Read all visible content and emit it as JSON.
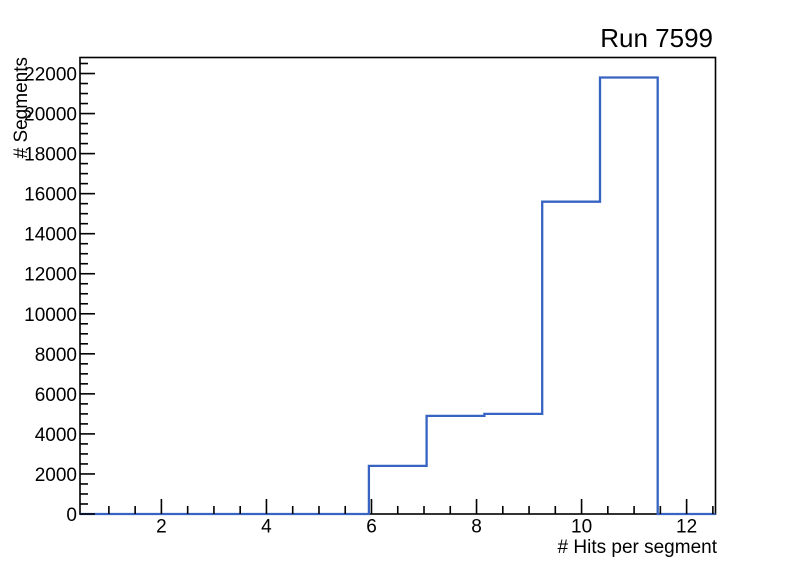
{
  "window": {
    "background": "#ffffff"
  },
  "chart_data": {
    "type": "step-histogram",
    "title": "Run 7599",
    "xlabel": "# Hits per segment",
    "ylabel": "# Segments",
    "xlim": [
      0.45,
      12.55
    ],
    "ylim": [
      0,
      22800
    ],
    "bin_edges": [
      0.45,
      1.55,
      2.65,
      3.75,
      4.85,
      5.95,
      7.05,
      8.15,
      9.25,
      10.35,
      11.45,
      12.55
    ],
    "bin_centers": [
      1.0,
      2.1,
      3.2,
      4.3,
      5.4,
      6.5,
      7.6,
      8.7,
      9.8,
      10.9,
      12.0
    ],
    "counts": [
      0,
      0,
      0,
      0,
      0,
      2400,
      4900,
      5000,
      15600,
      21800,
      0
    ],
    "x_major_ticks": [
      2,
      4,
      6,
      8,
      10,
      12
    ],
    "x_major_labels": [
      "2",
      "4",
      "6",
      "8",
      "10",
      "12"
    ],
    "x_minor_step": 0.5,
    "y_major_ticks": [
      0,
      2000,
      4000,
      6000,
      8000,
      10000,
      12000,
      14000,
      16000,
      18000,
      20000,
      22000
    ],
    "y_major_labels": [
      "0",
      "2000",
      "4000",
      "6000",
      "8000",
      "10000",
      "12000",
      "14000",
      "16000",
      "18000",
      "20000",
      "22000"
    ],
    "y_minor_step": 500,
    "grid": false,
    "legend": null,
    "line_color": "#3764c3",
    "axis_color": "#000000",
    "text_color": "#000000"
  }
}
